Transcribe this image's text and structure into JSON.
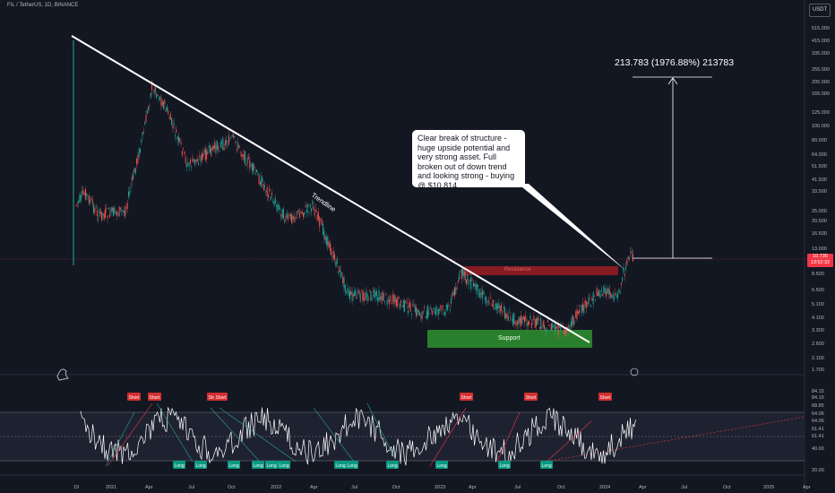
{
  "header": {
    "symbol": "FIL / TetherUS, 1D, BINANCE"
  },
  "currency": "USDT",
  "annotations": {
    "callout": "Clear break of structure - huge upside potential and very strong asset. Full broken out of down trend and looking strong - buying @ $10.814",
    "target": "213.783 (1976.88%) 213783",
    "trendline": "Trendline",
    "resistance": "Resistance",
    "support": "Support"
  },
  "price_tag": {
    "value": "10.735",
    "timer": "13:52:32"
  },
  "price_axis": [
    "515.000",
    "415.000",
    "335.000",
    "255.000",
    "205.000",
    "165.000",
    "125.000",
    "100.000",
    "80.000",
    "64.000",
    "51.500",
    "41.500",
    "33.500",
    "25.000",
    "20.500",
    "16.500",
    "13.000",
    "8.500",
    "6.500",
    "5.100",
    "4.100",
    "3.300",
    "2.600",
    "2.100",
    "1.700"
  ],
  "osc_axis": [
    "84.15",
    "84.15",
    "68.85",
    "64.06",
    "64.06",
    "61.41",
    "61.41",
    "40.00",
    "20.00"
  ],
  "time_axis": [
    "19",
    "2021",
    "Apr",
    "Jul",
    "Oct",
    "2022",
    "Apr",
    "Jul",
    "Oct",
    "2023",
    "Apr",
    "Jul",
    "Oct",
    "2024",
    "Apr",
    "Jul",
    "Oct",
    "2025",
    "Apr"
  ],
  "signals": {
    "short": [
      "Short",
      "Short",
      "Short",
      "Short",
      "Short",
      "Short",
      "Short"
    ],
    "long": [
      "Long",
      "Long",
      "Long",
      "Long",
      "Long",
      "Long",
      "Long",
      "Long",
      "Long",
      "Long",
      "Long",
      "Long"
    ]
  },
  "colors": {
    "bg": "#131722",
    "up": "#26a69a",
    "down": "#ef5350",
    "trend": "#ffffff",
    "resistance": "#9b1c22",
    "support": "#2e8b2e"
  },
  "icons": [
    "tradingview-logo-icon",
    "settings-circle-icon"
  ]
}
